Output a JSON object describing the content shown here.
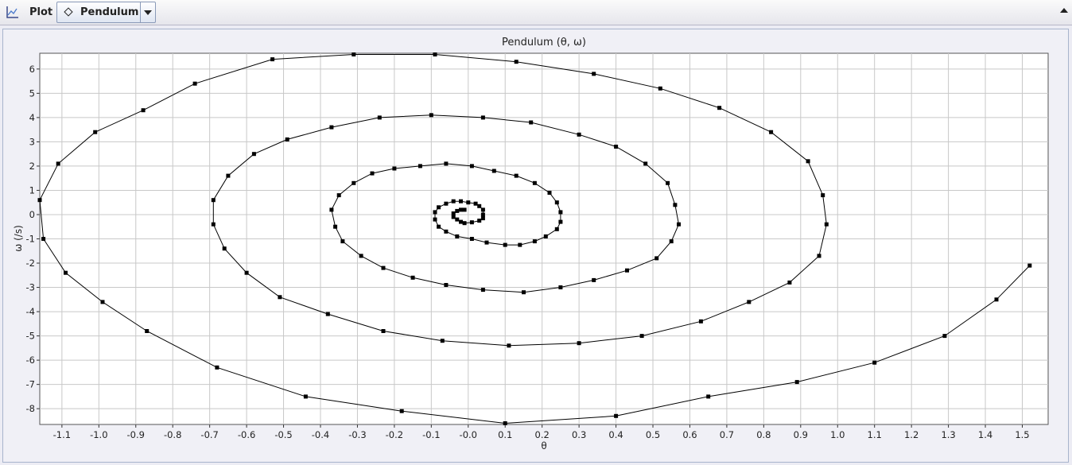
{
  "toolbar": {
    "plot_label": "Plot",
    "selector_label": "Pendulum",
    "icons": [
      "plot-icon",
      "diamond-icon",
      "dropdown-arrow-icon",
      "collapse-arrow-icon"
    ]
  },
  "chart_data": {
    "type": "scatter",
    "title": "Pendulum (θ, ω)",
    "xlabel": "θ",
    "ylabel": "ω (/s)",
    "xlim": [
      -1.16,
      1.57
    ],
    "ylim": [
      -8.65,
      6.65
    ],
    "grid": true,
    "x_ticks": [
      -1.1,
      -1.0,
      -0.9,
      -0.8,
      -0.7,
      -0.6,
      -0.5,
      -0.4,
      -0.3,
      -0.2,
      -0.1,
      -0.0,
      0.1,
      0.2,
      0.3,
      0.4,
      0.5,
      0.6,
      0.7,
      0.8,
      0.9,
      1.0,
      1.1,
      1.2,
      1.3,
      1.4,
      1.5
    ],
    "y_ticks": [
      -8,
      -7,
      -6,
      -5,
      -4,
      -3,
      -2,
      -1,
      0,
      1,
      2,
      3,
      4,
      5,
      6
    ],
    "marker": "square",
    "line_color": "#000000",
    "series": [
      {
        "points": [
          [
            1.52,
            -2.1
          ],
          [
            1.43,
            -3.5
          ],
          [
            1.29,
            -5.0
          ],
          [
            1.1,
            -6.1
          ],
          [
            0.89,
            -6.9
          ],
          [
            0.65,
            -7.5
          ],
          [
            0.4,
            -8.3
          ],
          [
            0.1,
            -8.6
          ],
          [
            -0.18,
            -8.1
          ],
          [
            -0.44,
            -7.5
          ],
          [
            -0.68,
            -6.3
          ],
          [
            -0.87,
            -4.8
          ],
          [
            -0.99,
            -3.6
          ],
          [
            -1.09,
            -2.4
          ],
          [
            -1.15,
            -1.0
          ],
          [
            -1.16,
            0.6
          ],
          [
            -1.11,
            2.1
          ],
          [
            -1.01,
            3.4
          ],
          [
            -0.88,
            4.3
          ],
          [
            -0.74,
            5.4
          ],
          [
            -0.53,
            6.4
          ],
          [
            -0.31,
            6.6
          ],
          [
            -0.09,
            6.6
          ],
          [
            0.13,
            6.3
          ],
          [
            0.34,
            5.8
          ],
          [
            0.52,
            5.2
          ],
          [
            0.68,
            4.4
          ],
          [
            0.82,
            3.4
          ],
          [
            0.92,
            2.2
          ],
          [
            0.96,
            0.8
          ],
          [
            0.97,
            -0.4
          ],
          [
            0.95,
            -1.7
          ],
          [
            0.87,
            -2.8
          ],
          [
            0.76,
            -3.6
          ],
          [
            0.63,
            -4.4
          ],
          [
            0.47,
            -5.0
          ],
          [
            0.3,
            -5.3
          ],
          [
            0.11,
            -5.4
          ],
          [
            -0.07,
            -5.2
          ],
          [
            -0.23,
            -4.8
          ],
          [
            -0.38,
            -4.1
          ],
          [
            -0.51,
            -3.4
          ],
          [
            -0.6,
            -2.4
          ],
          [
            -0.66,
            -1.4
          ],
          [
            -0.69,
            -0.4
          ],
          [
            -0.69,
            0.6
          ],
          [
            -0.65,
            1.6
          ],
          [
            -0.58,
            2.5
          ],
          [
            -0.49,
            3.1
          ],
          [
            -0.37,
            3.6
          ],
          [
            -0.24,
            4.0
          ],
          [
            -0.1,
            4.1
          ],
          [
            0.04,
            4.0
          ],
          [
            0.17,
            3.8
          ],
          [
            0.3,
            3.3
          ],
          [
            0.4,
            2.8
          ],
          [
            0.48,
            2.1
          ],
          [
            0.54,
            1.3
          ],
          [
            0.56,
            0.4
          ],
          [
            0.57,
            -0.4
          ],
          [
            0.55,
            -1.1
          ],
          [
            0.51,
            -1.8
          ],
          [
            0.43,
            -2.3
          ],
          [
            0.34,
            -2.7
          ],
          [
            0.25,
            -3.0
          ],
          [
            0.15,
            -3.2
          ],
          [
            0.04,
            -3.1
          ],
          [
            -0.06,
            -2.9
          ],
          [
            -0.15,
            -2.6
          ],
          [
            -0.23,
            -2.2
          ],
          [
            -0.29,
            -1.7
          ],
          [
            -0.34,
            -1.1
          ],
          [
            -0.36,
            -0.5
          ],
          [
            -0.37,
            0.2
          ],
          [
            -0.35,
            0.8
          ],
          [
            -0.31,
            1.3
          ],
          [
            -0.26,
            1.7
          ],
          [
            -0.2,
            1.9
          ],
          [
            -0.13,
            2.0
          ],
          [
            -0.06,
            2.1
          ],
          [
            0.01,
            2.0
          ],
          [
            0.07,
            1.8
          ],
          [
            0.13,
            1.6
          ],
          [
            0.18,
            1.3
          ],
          [
            0.22,
            0.9
          ],
          [
            0.24,
            0.5
          ],
          [
            0.25,
            0.1
          ],
          [
            0.25,
            -0.3
          ],
          [
            0.24,
            -0.6
          ],
          [
            0.21,
            -0.9
          ],
          [
            0.18,
            -1.1
          ],
          [
            0.14,
            -1.25
          ],
          [
            0.1,
            -1.25
          ],
          [
            0.05,
            -1.15
          ],
          [
            0.01,
            -1.0
          ],
          [
            -0.03,
            -0.9
          ],
          [
            -0.06,
            -0.7
          ],
          [
            -0.08,
            -0.5
          ],
          [
            -0.09,
            -0.2
          ],
          [
            -0.09,
            0.1
          ],
          [
            -0.08,
            0.3
          ],
          [
            -0.06,
            0.45
          ],
          [
            -0.04,
            0.55
          ],
          [
            -0.02,
            0.55
          ],
          [
            0.0,
            0.5
          ],
          [
            0.02,
            0.45
          ],
          [
            0.03,
            0.35
          ],
          [
            0.04,
            0.2
          ],
          [
            0.04,
            0.0
          ],
          [
            0.04,
            -0.15
          ],
          [
            0.03,
            -0.25
          ],
          [
            0.01,
            -0.32
          ],
          [
            -0.01,
            -0.35
          ],
          [
            -0.02,
            -0.3
          ],
          [
            -0.03,
            -0.2
          ],
          [
            -0.04,
            -0.1
          ],
          [
            -0.04,
            0.05
          ],
          [
            -0.03,
            0.15
          ],
          [
            -0.02,
            0.2
          ],
          [
            -0.01,
            0.2
          ]
        ]
      }
    ]
  }
}
